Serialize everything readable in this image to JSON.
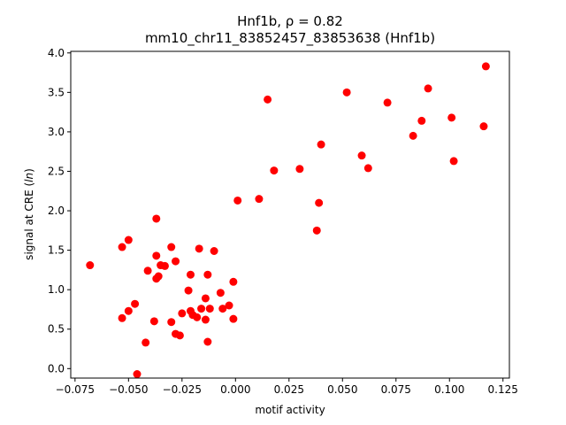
{
  "chart_data": {
    "type": "scatter",
    "title": "Hnf1b, ρ = 0.82",
    "subtitle": "mm10_chr11_83852457_83853638 (Hnf1b)",
    "xlabel": "motif activity",
    "ylabel": "signal at CRE (ln)",
    "xlim": [
      -0.077,
      0.128
    ],
    "ylim": [
      -0.12,
      4.02
    ],
    "xticks": [
      -0.075,
      -0.05,
      -0.025,
      0.0,
      0.025,
      0.05,
      0.075,
      0.1,
      0.125
    ],
    "xtick_labels": [
      "−0.075",
      "−0.050",
      "−0.025",
      "0.000",
      "0.025",
      "0.050",
      "0.075",
      "0.100",
      "0.125"
    ],
    "yticks": [
      0.0,
      0.5,
      1.0,
      1.5,
      2.0,
      2.5,
      3.0,
      3.5,
      4.0
    ],
    "ytick_labels": [
      "0.0",
      "0.5",
      "1.0",
      "1.5",
      "2.0",
      "2.5",
      "3.0",
      "3.5",
      "4.0"
    ],
    "grid": false,
    "color": "#ff0000",
    "points": [
      {
        "x": -0.068,
        "y": 1.31
      },
      {
        "x": -0.053,
        "y": 1.54
      },
      {
        "x": -0.05,
        "y": 1.63
      },
      {
        "x": -0.053,
        "y": 0.64
      },
      {
        "x": -0.05,
        "y": 0.73
      },
      {
        "x": -0.047,
        "y": 0.82
      },
      {
        "x": -0.046,
        "y": -0.07
      },
      {
        "x": -0.042,
        "y": 0.33
      },
      {
        "x": -0.041,
        "y": 1.24
      },
      {
        "x": -0.038,
        "y": 0.6
      },
      {
        "x": -0.037,
        "y": 1.9
      },
      {
        "x": -0.037,
        "y": 1.43
      },
      {
        "x": -0.037,
        "y": 1.14
      },
      {
        "x": -0.036,
        "y": 1.17
      },
      {
        "x": -0.035,
        "y": 1.31
      },
      {
        "x": -0.033,
        "y": 1.3
      },
      {
        "x": -0.03,
        "y": 1.54
      },
      {
        "x": -0.03,
        "y": 0.59
      },
      {
        "x": -0.028,
        "y": 1.36
      },
      {
        "x": -0.028,
        "y": 0.44
      },
      {
        "x": -0.026,
        "y": 0.42
      },
      {
        "x": -0.025,
        "y": 0.7
      },
      {
        "x": -0.022,
        "y": 0.99
      },
      {
        "x": -0.021,
        "y": 1.19
      },
      {
        "x": -0.021,
        "y": 0.73
      },
      {
        "x": -0.02,
        "y": 0.68
      },
      {
        "x": -0.018,
        "y": 0.65
      },
      {
        "x": -0.017,
        "y": 1.52
      },
      {
        "x": -0.016,
        "y": 0.76
      },
      {
        "x": -0.014,
        "y": 0.62
      },
      {
        "x": -0.014,
        "y": 0.89
      },
      {
        "x": -0.013,
        "y": 1.19
      },
      {
        "x": -0.013,
        "y": 0.34
      },
      {
        "x": -0.012,
        "y": 0.76
      },
      {
        "x": -0.01,
        "y": 1.49
      },
      {
        "x": -0.007,
        "y": 0.96
      },
      {
        "x": -0.006,
        "y": 0.76
      },
      {
        "x": -0.003,
        "y": 0.8
      },
      {
        "x": -0.001,
        "y": 1.1
      },
      {
        "x": -0.001,
        "y": 0.63
      },
      {
        "x": 0.001,
        "y": 2.13
      },
      {
        "x": 0.011,
        "y": 2.15
      },
      {
        "x": 0.015,
        "y": 3.41
      },
      {
        "x": 0.018,
        "y": 2.51
      },
      {
        "x": 0.03,
        "y": 2.53
      },
      {
        "x": 0.038,
        "y": 1.75
      },
      {
        "x": 0.039,
        "y": 2.1
      },
      {
        "x": 0.04,
        "y": 2.84
      },
      {
        "x": 0.052,
        "y": 3.5
      },
      {
        "x": 0.059,
        "y": 2.7
      },
      {
        "x": 0.062,
        "y": 2.54
      },
      {
        "x": 0.071,
        "y": 3.37
      },
      {
        "x": 0.083,
        "y": 2.95
      },
      {
        "x": 0.087,
        "y": 3.14
      },
      {
        "x": 0.09,
        "y": 3.55
      },
      {
        "x": 0.101,
        "y": 3.18
      },
      {
        "x": 0.102,
        "y": 2.63
      },
      {
        "x": 0.116,
        "y": 3.07
      },
      {
        "x": 0.117,
        "y": 3.83
      }
    ]
  }
}
